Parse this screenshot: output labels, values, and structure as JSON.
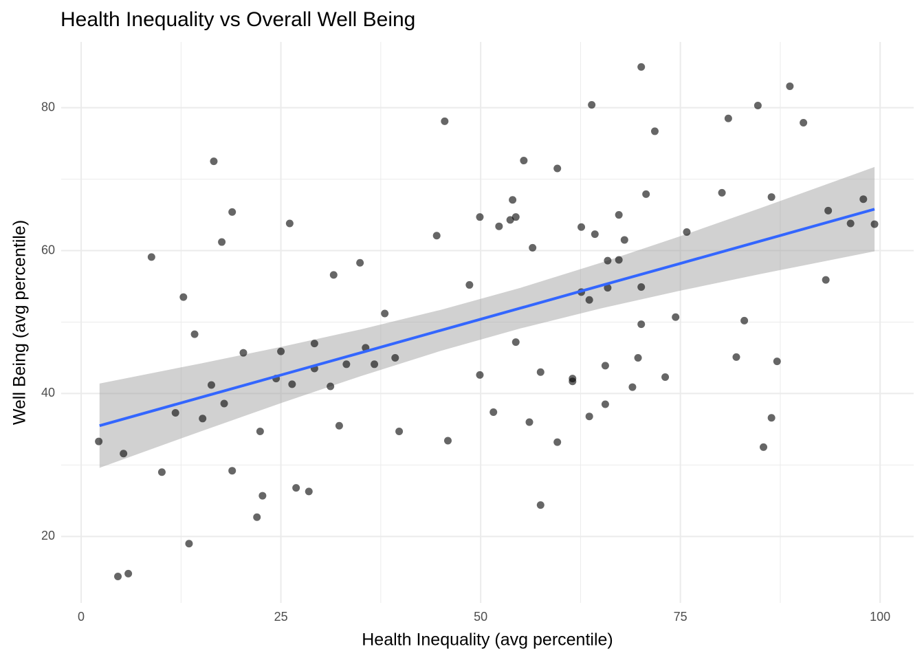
{
  "chart_data": {
    "type": "scatter",
    "title": "Health Inequality vs Overall Well Being",
    "x_label": "Health Inequality (avg percentile)",
    "y_label": "Well Being (avg percentile)",
    "xlim": [
      -2.5,
      104.2
    ],
    "ylim": [
      10.7,
      89.2
    ],
    "xticks": [
      0,
      25,
      50,
      75,
      100
    ],
    "yticks": [
      20,
      40,
      60,
      80
    ],
    "xminor": [
      12.5,
      37.5,
      62.5,
      87.5
    ],
    "yminor": [
      30,
      50,
      70
    ],
    "grid": true,
    "point_color": "#000000",
    "point_opacity": 0.6,
    "x": [
      2.2,
      5.3,
      4.6,
      5.9,
      8.8,
      10.1,
      11.8,
      12.8,
      13.5,
      14.2,
      15.2,
      16.3,
      16.6,
      17.6,
      17.9,
      18.9,
      18.9,
      20.3,
      22.0,
      22.4,
      22.7,
      24.4,
      25.0,
      26.1,
      26.4,
      26.9,
      28.5,
      29.2,
      29.2,
      31.2,
      31.6,
      32.3,
      33.2,
      34.9,
      35.6,
      36.7,
      38.0,
      39.3,
      39.8,
      44.5,
      45.5,
      45.9,
      48.6,
      49.9,
      49.9,
      51.6,
      52.3,
      53.7,
      54.0,
      54.4,
      54.4,
      55.4,
      56.1,
      56.5,
      57.5,
      57.5,
      59.6,
      59.6,
      61.5,
      61.5,
      62.6,
      62.6,
      63.6,
      63.6,
      63.9,
      64.3,
      65.6,
      65.6,
      65.9,
      65.9,
      67.3,
      67.3,
      68.0,
      69.0,
      69.7,
      70.1,
      70.1,
      70.1,
      70.7,
      71.8,
      73.1,
      74.4,
      75.8,
      80.2,
      81.0,
      82.0,
      83.0,
      84.7,
      85.4,
      86.4,
      86.4,
      87.1,
      88.7,
      90.4,
      93.2,
      93.5,
      96.3,
      97.9,
      99.3
    ],
    "y": [
      33.3,
      31.6,
      14.4,
      14.8,
      59.1,
      29.0,
      37.3,
      53.5,
      19.0,
      48.3,
      36.5,
      41.2,
      72.5,
      61.2,
      38.6,
      65.4,
      29.2,
      45.7,
      22.7,
      34.7,
      25.7,
      42.1,
      45.9,
      63.8,
      41.3,
      26.8,
      26.3,
      47.0,
      43.5,
      41.0,
      56.6,
      35.5,
      44.1,
      58.3,
      46.4,
      44.1,
      51.2,
      45.0,
      34.7,
      62.1,
      78.1,
      33.4,
      55.2,
      64.7,
      42.6,
      37.4,
      63.4,
      64.3,
      67.1,
      64.7,
      47.2,
      72.6,
      36.0,
      60.4,
      43.0,
      24.4,
      71.5,
      33.2,
      42.1,
      41.7,
      63.3,
      54.2,
      36.8,
      53.1,
      80.4,
      62.3,
      43.9,
      38.5,
      58.6,
      54.8,
      58.7,
      65.0,
      61.5,
      40.9,
      45.0,
      85.7,
      49.7,
      54.9,
      67.9,
      76.7,
      42.3,
      50.7,
      62.6,
      68.1,
      78.5,
      45.1,
      50.2,
      80.3,
      32.5,
      67.5,
      36.6,
      44.5,
      83.0,
      77.9,
      55.9,
      65.6,
      63.8,
      67.2,
      63.7
    ],
    "fit": {
      "color": "#3366ff",
      "band_color": "#999999",
      "band_opacity": 0.45,
      "x": [
        2.3,
        15,
        25,
        35,
        45,
        55,
        65,
        75,
        85,
        99.3
      ],
      "values": [
        35.5,
        39.47,
        42.59,
        45.71,
        48.84,
        51.96,
        55.09,
        58.21,
        61.33,
        65.8
      ],
      "lower": [
        29.6,
        34.72,
        38.66,
        42.44,
        45.97,
        49.12,
        51.9,
        54.4,
        56.72,
        59.9
      ],
      "upper": [
        41.4,
        44.22,
        46.52,
        48.98,
        51.71,
        54.8,
        58.28,
        62.02,
        65.94,
        71.7
      ]
    }
  }
}
